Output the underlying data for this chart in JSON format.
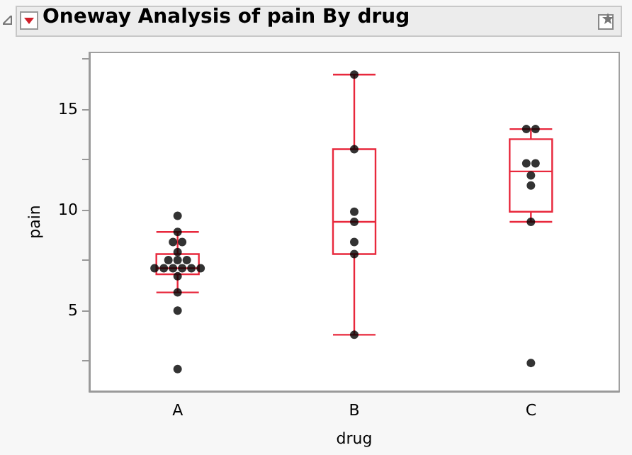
{
  "chart_data": {
    "type": "box",
    "title": "Oneway Analysis of pain By drug",
    "xlabel": "drug",
    "ylabel": "pain",
    "categories": [
      "A",
      "B",
      "C"
    ],
    "ylim": [
      1,
      17.8
    ],
    "yticks": [
      {
        "value": 2.5,
        "label": null
      },
      5,
      {
        "value": 7.5,
        "label": null
      },
      10,
      {
        "value": 12.5,
        "label": null
      },
      15,
      {
        "value": 17.5,
        "label": null
      }
    ],
    "grid": false,
    "series": [
      {
        "color": "#e8283c",
        "boxes": [
          {
            "low": 5.9,
            "q1": 6.8,
            "median": 7.1,
            "q3": 7.8,
            "high": 8.9
          },
          {
            "low": 3.8,
            "q1": 7.8,
            "median": 9.4,
            "q3": 13.0,
            "high": 16.7
          },
          {
            "low": 9.4,
            "q1": 9.9,
            "median": 11.9,
            "q3": 13.5,
            "high": 14.0
          }
        ]
      },
      {
        "type": "scatter",
        "color": "#000000",
        "marker": "circle",
        "x": [
          "A",
          "A",
          "A",
          "A",
          "A",
          "A",
          "A",
          "A",
          "A",
          "A",
          "A",
          "A",
          "A",
          "A",
          "A",
          "A",
          "A",
          "A",
          "B",
          "B",
          "B",
          "B",
          "B",
          "B",
          "B",
          "C",
          "C",
          "C",
          "C",
          "C",
          "C",
          "C",
          "C"
        ],
        "values": [
          9.7,
          8.9,
          8.4,
          8.4,
          7.9,
          7.5,
          7.5,
          7.5,
          7.1,
          7.1,
          7.1,
          7.1,
          7.1,
          7.1,
          6.7,
          5.9,
          5.0,
          2.1,
          16.7,
          13.0,
          9.9,
          9.4,
          8.4,
          7.8,
          3.8,
          14.0,
          14.0,
          12.3,
          12.3,
          11.7,
          11.2,
          9.4,
          2.4
        ]
      }
    ]
  }
}
